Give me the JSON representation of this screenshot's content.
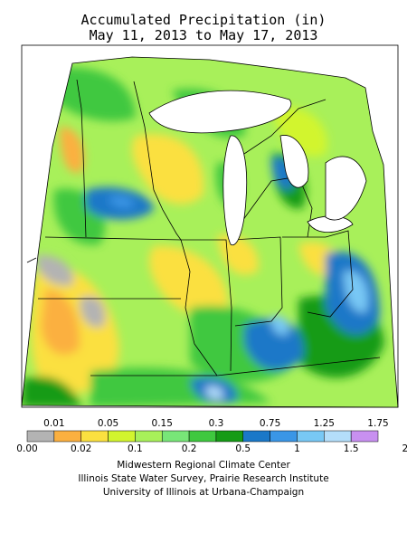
{
  "map": {
    "title_line1": "Accumulated Precipitation (in)",
    "title_line2": "May 11, 2013 to May 17, 2013",
    "variable": "precipitation",
    "units": "in",
    "region": "Midwest US"
  },
  "legend": {
    "colors": [
      "#b3b3b3",
      "#fbb040",
      "#fbe040",
      "#d2f52e",
      "#a8f05a",
      "#78e678",
      "#3fc83f",
      "#169b16",
      "#1a78c8",
      "#3a96e6",
      "#78c8f5",
      "#b4defa",
      "#c890f0"
    ],
    "upper_labels": [
      "0.01",
      "0.05",
      "0.15",
      "0.3",
      "0.75",
      "1.25",
      "1.75"
    ],
    "lower_labels": [
      "0.00",
      "0.02",
      "0.1",
      "0.2",
      "0.5",
      "1",
      "1.5",
      "2"
    ]
  },
  "credits": {
    "line1": "Midwestern Regional Climate Center",
    "line2": "Illinois State Water Survey, Prairie Research Institute",
    "line3": "University of Illinois at Urbana-Champaign"
  }
}
